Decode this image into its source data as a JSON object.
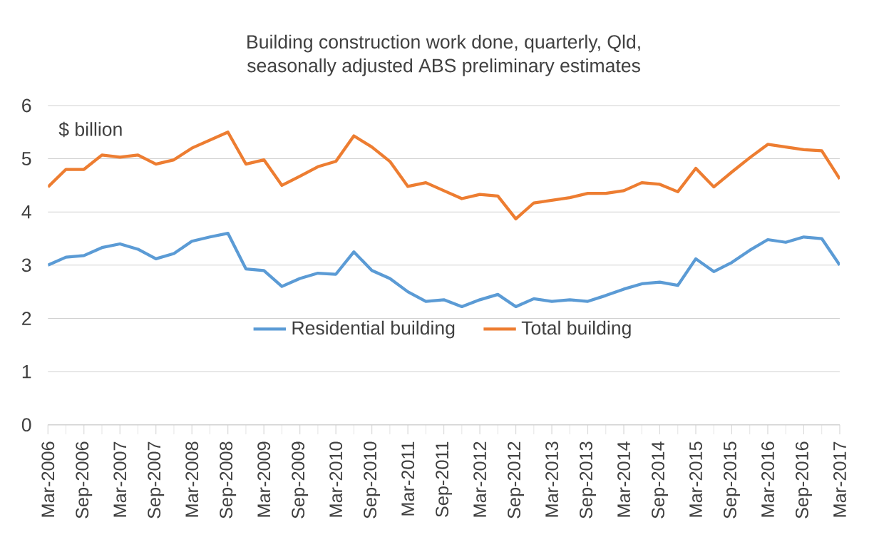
{
  "chart_data": {
    "type": "line",
    "title": "Building construction work done, quarterly, Qld,\nseasonally adjusted ABS preliminary estimates",
    "annotations": [
      "$ billion"
    ],
    "categories": [
      "Mar-2006",
      null,
      "Sep-2006",
      null,
      "Mar-2007",
      null,
      "Sep-2007",
      null,
      "Mar-2008",
      null,
      "Sep-2008",
      null,
      "Mar-2009",
      null,
      "Sep-2009",
      null,
      "Mar-2010",
      null,
      "Sep-2010",
      null,
      "Mar-2011",
      null,
      "Sep-2011",
      null,
      "Mar-2012",
      null,
      "Sep-2012",
      null,
      "Mar-2013",
      null,
      "Sep-2013",
      null,
      "Mar-2014",
      null,
      "Sep-2014",
      null,
      "Mar-2015",
      null,
      "Sep-2015",
      null,
      "Mar-2016",
      null,
      "Sep-2016",
      null,
      "Mar-2017"
    ],
    "series": [
      {
        "name": "Residential building",
        "color": "#5b9bd5",
        "values": [
          3.0,
          3.15,
          3.18,
          3.33,
          3.4,
          3.3,
          3.12,
          3.22,
          3.45,
          3.53,
          3.6,
          2.93,
          2.9,
          2.6,
          2.75,
          2.85,
          2.83,
          3.25,
          2.9,
          2.75,
          2.5,
          2.32,
          2.35,
          2.22,
          2.35,
          2.45,
          2.22,
          2.37,
          2.32,
          2.35,
          2.32,
          2.43,
          2.55,
          2.65,
          2.68,
          2.62,
          3.12,
          2.88,
          3.05,
          3.28,
          3.48,
          3.43,
          3.53,
          3.5,
          3.0
        ]
      },
      {
        "name": "Total building",
        "color": "#ed7d31",
        "values": [
          4.47,
          4.8,
          4.8,
          5.07,
          5.03,
          5.07,
          4.9,
          4.98,
          5.2,
          5.35,
          5.5,
          4.9,
          4.98,
          4.5,
          4.67,
          4.85,
          4.95,
          5.43,
          5.22,
          4.95,
          4.48,
          4.55,
          4.4,
          4.25,
          4.33,
          4.3,
          3.87,
          4.17,
          4.22,
          4.27,
          4.35,
          4.35,
          4.4,
          4.55,
          4.52,
          4.38,
          4.82,
          4.47,
          4.75,
          5.02,
          5.27,
          5.22,
          5.17,
          5.15,
          4.62
        ]
      }
    ],
    "ylim": [
      0,
      6
    ],
    "yticks": [
      0,
      1,
      2,
      3,
      4,
      5,
      6
    ],
    "grid": "y",
    "legend": "bottom",
    "marker": "none",
    "line_style": "solid"
  }
}
